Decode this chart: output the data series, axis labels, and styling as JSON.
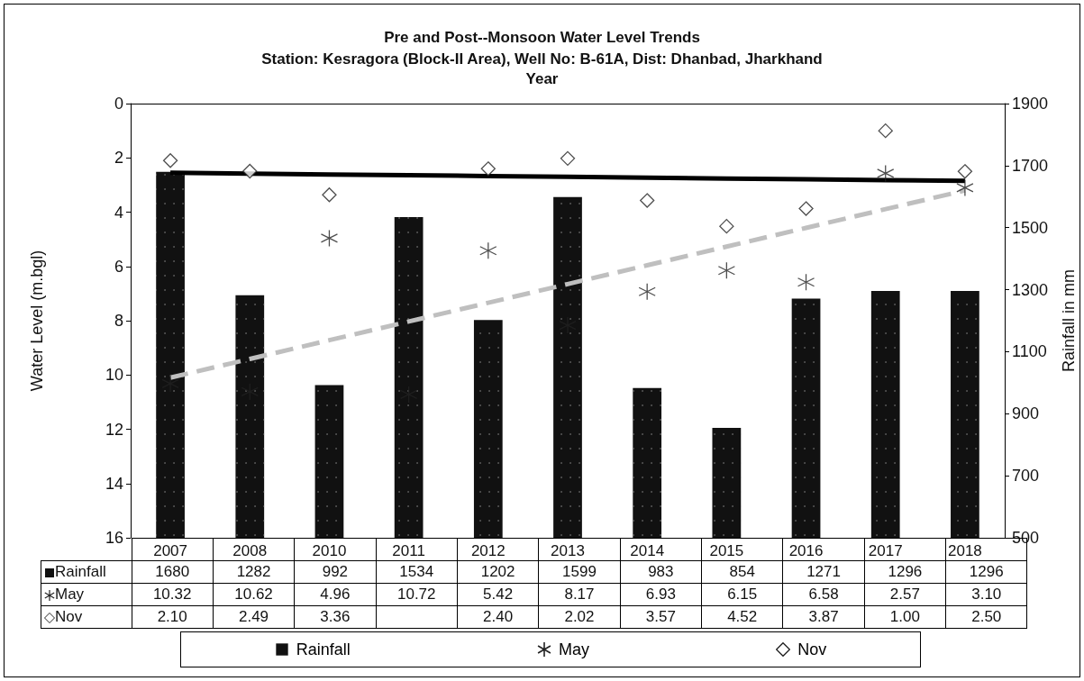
{
  "chart_data": {
    "type": "bar",
    "title": "Pre and Post--Monsoon Water Level Trends",
    "subtitle": "Station: Kesragora (Block-II Area), Well No: B-61A, Dist: Dhanbad, Jharkhand",
    "xlabel": "Year",
    "ylabel": "Water Level (m.bgl)",
    "y2label": "Rainfall in mm",
    "categories": [
      "2007",
      "2008",
      "2010",
      "2011",
      "2012",
      "2013",
      "2014",
      "2015",
      "2016",
      "2017",
      "2018"
    ],
    "series": [
      {
        "name": "Rainfall",
        "axis": "y2",
        "color": "#111111",
        "values": [
          1680,
          1282,
          992,
          1534,
          1202,
          1599,
          983,
          854,
          1271,
          1296,
          1296
        ],
        "value_labels": [
          "1680",
          "1282",
          "992",
          "1534",
          "1202",
          "1599",
          "983",
          "854",
          "1271",
          "1296",
          "1296"
        ]
      },
      {
        "name": "May",
        "type": "scatter",
        "marker": "cross",
        "color": "#222222",
        "values": [
          10.32,
          10.62,
          4.96,
          10.72,
          5.42,
          8.17,
          6.93,
          6.15,
          6.58,
          2.57,
          3.1
        ],
        "value_labels": [
          "10.32",
          "10.62",
          "4.96",
          "10.72",
          "5.42",
          "8.17",
          "6.93",
          "6.15",
          "6.58",
          "2.57",
          "3.10"
        ]
      },
      {
        "name": "Nov",
        "type": "scatter",
        "marker": "diamond",
        "color": "#222222",
        "values": [
          2.1,
          2.49,
          3.36,
          null,
          2.4,
          2.02,
          3.57,
          4.52,
          3.87,
          1.0,
          2.5
        ],
        "value_labels": [
          "2.10",
          "2.49",
          "3.36",
          null,
          "2.40",
          "2.02",
          "3.57",
          "4.52",
          "3.87",
          "1.00",
          "2.50"
        ]
      },
      {
        "type": "line",
        "color": "#000000",
        "line_style": "solid",
        "values": [
          2.55,
          2.58,
          2.61,
          2.64,
          2.67,
          2.7,
          2.73,
          2.76,
          2.79,
          2.82,
          2.85
        ]
      },
      {
        "type": "line",
        "color": "#bfbfbf",
        "line_style": "dashed",
        "values": [
          10.1,
          9.41,
          8.72,
          8.03,
          7.34,
          6.65,
          5.96,
          5.27,
          4.58,
          3.89,
          3.2
        ]
      }
    ],
    "ylim": [
      16,
      0
    ],
    "yticks": [
      0,
      2,
      4,
      6,
      8,
      10,
      12,
      14,
      16
    ],
    "y2lim": [
      500,
      1900
    ],
    "y2ticks": [
      500,
      700,
      900,
      1100,
      1300,
      1500,
      1700,
      1900
    ],
    "grid": false,
    "legend": "bottom"
  }
}
